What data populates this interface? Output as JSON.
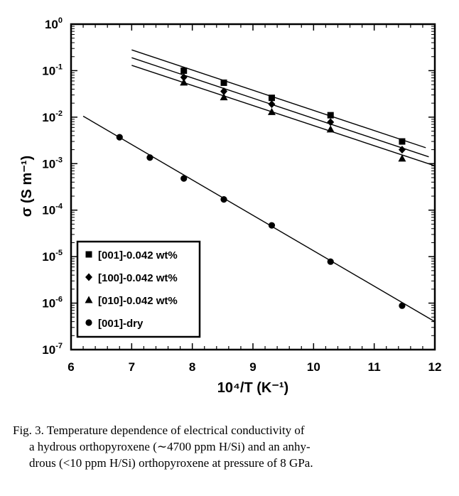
{
  "chart_data": {
    "type": "scatter",
    "xlabel": "10⁴/T (K⁻¹)",
    "ylabel": "σ (S m⁻¹)",
    "xlim": [
      6,
      12
    ],
    "ylim": [
      1e-07,
      1
    ],
    "yscale": "log",
    "x_ticks": [
      6,
      7,
      8,
      9,
      10,
      11,
      12
    ],
    "y_ticks": [
      {
        "value": 1,
        "base": "10",
        "exp": "0"
      },
      {
        "value": 0.1,
        "base": "10",
        "exp": "-1"
      },
      {
        "value": 0.01,
        "base": "10",
        "exp": "-2"
      },
      {
        "value": 0.001,
        "base": "10",
        "exp": "-3"
      },
      {
        "value": 0.0001,
        "base": "10",
        "exp": "-4"
      },
      {
        "value": 1e-05,
        "base": "10",
        "exp": "-5"
      },
      {
        "value": 1e-06,
        "base": "10",
        "exp": "-6"
      },
      {
        "value": 1e-07,
        "base": "10",
        "exp": "-7"
      }
    ],
    "legend_position": "bottom-left",
    "grid": false,
    "series": [
      {
        "name": "[001]-0.042 wt%",
        "marker": "square",
        "points": [
          [
            7.86,
            0.1
          ],
          [
            8.52,
            0.055
          ],
          [
            9.31,
            0.026
          ],
          [
            10.28,
            0.011
          ],
          [
            11.46,
            0.003
          ]
        ],
        "fit": [
          [
            7.0,
            0.28
          ],
          [
            11.85,
            0.0022
          ]
        ]
      },
      {
        "name": "[100]-0.042 wt%",
        "marker": "diamond",
        "points": [
          [
            7.86,
            0.072
          ],
          [
            8.52,
            0.036
          ],
          [
            9.31,
            0.019
          ],
          [
            10.28,
            0.0078
          ],
          [
            11.46,
            0.002
          ]
        ],
        "fit": [
          [
            7.0,
            0.19
          ],
          [
            11.9,
            0.0014
          ]
        ]
      },
      {
        "name": "[010]-0.042 wt%",
        "marker": "triangle",
        "points": [
          [
            7.86,
            0.056
          ],
          [
            8.52,
            0.027
          ],
          [
            9.31,
            0.013
          ],
          [
            10.28,
            0.0055
          ],
          [
            11.46,
            0.0013
          ]
        ],
        "fit": [
          [
            7.0,
            0.13
          ],
          [
            12.0,
            0.0009
          ]
        ]
      },
      {
        "name": "[001]-dry",
        "marker": "circle",
        "points": [
          [
            6.8,
            0.0037
          ],
          [
            7.3,
            0.00135
          ],
          [
            7.86,
            0.00048
          ],
          [
            8.52,
            0.00017
          ],
          [
            9.31,
            4.7e-05
          ],
          [
            10.28,
            7.8e-06
          ],
          [
            11.46,
            8.8e-07
          ]
        ],
        "fit": [
          [
            6.2,
            0.0105
          ],
          [
            12.0,
            4e-07
          ]
        ]
      }
    ]
  },
  "caption": {
    "line1": "Fig. 3.   Temperature dependence of electrical conductivity of",
    "line2": "a hydrous orthopyroxene (∼4700 ppm H/Si) and an anhy-",
    "line3": "drous (<10 ppm H/Si) orthopyroxene at pressure of 8 GPa."
  }
}
